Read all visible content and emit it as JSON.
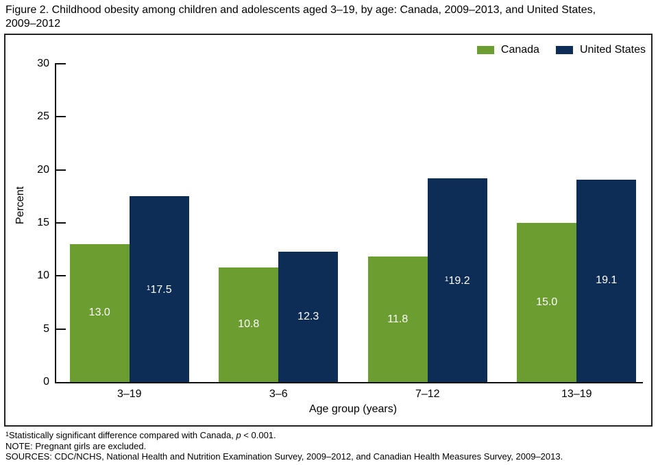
{
  "title": {
    "line1": "Figure 2. Childhood obesity among children and adolescents aged 3–19, by age: Canada, 2009–2013, and United States,",
    "line2": "2009–2012"
  },
  "chart_data": {
    "type": "bar",
    "categories": [
      "3–19",
      "3–6",
      "7–12",
      "13–19"
    ],
    "series": [
      {
        "name": "Canada",
        "color": "#6C9D30",
        "values": [
          13.0,
          10.8,
          11.8,
          15.0
        ],
        "labels": [
          "13.0",
          "10.8",
          "11.8",
          "15.0"
        ],
        "flags": [
          "",
          "",
          "",
          ""
        ]
      },
      {
        "name": "United States",
        "color": "#0E2D56",
        "values": [
          17.5,
          12.3,
          19.2,
          19.1
        ],
        "labels": [
          "17.5",
          "12.3",
          "19.2",
          "19.1"
        ],
        "flags": [
          "1",
          "",
          "1",
          ""
        ]
      }
    ],
    "title": "Childhood obesity among children and adolescents aged 3–19, by age: Canada, 2009–2013, and United States, 2009–2012",
    "xlabel": "Age group (years)",
    "ylabel": "Percent",
    "ylim": [
      0,
      30
    ],
    "yticks": [
      0,
      5,
      10,
      15,
      20,
      25,
      30
    ],
    "grid": false,
    "legend_position": "top-right",
    "value_label_color": "#ffffff"
  },
  "legend": {
    "items": [
      {
        "label": "Canada",
        "color": "#6C9D30"
      },
      {
        "label": "United States",
        "color": "#0E2D56"
      }
    ]
  },
  "footnotes": {
    "fn1_sup": "1",
    "fn1_pre": "Statistically significant difference compared with Canada, ",
    "fn1_italic": "p",
    "fn1_post": " < 0.001.",
    "note": "NOTE: Pregnant girls are excluded.",
    "sources": "SOURCES: CDC/NCHS, National Health and Nutrition Examination Survey, 2009–2012, and Canadian Health Measures Survey, 2009–2013."
  }
}
